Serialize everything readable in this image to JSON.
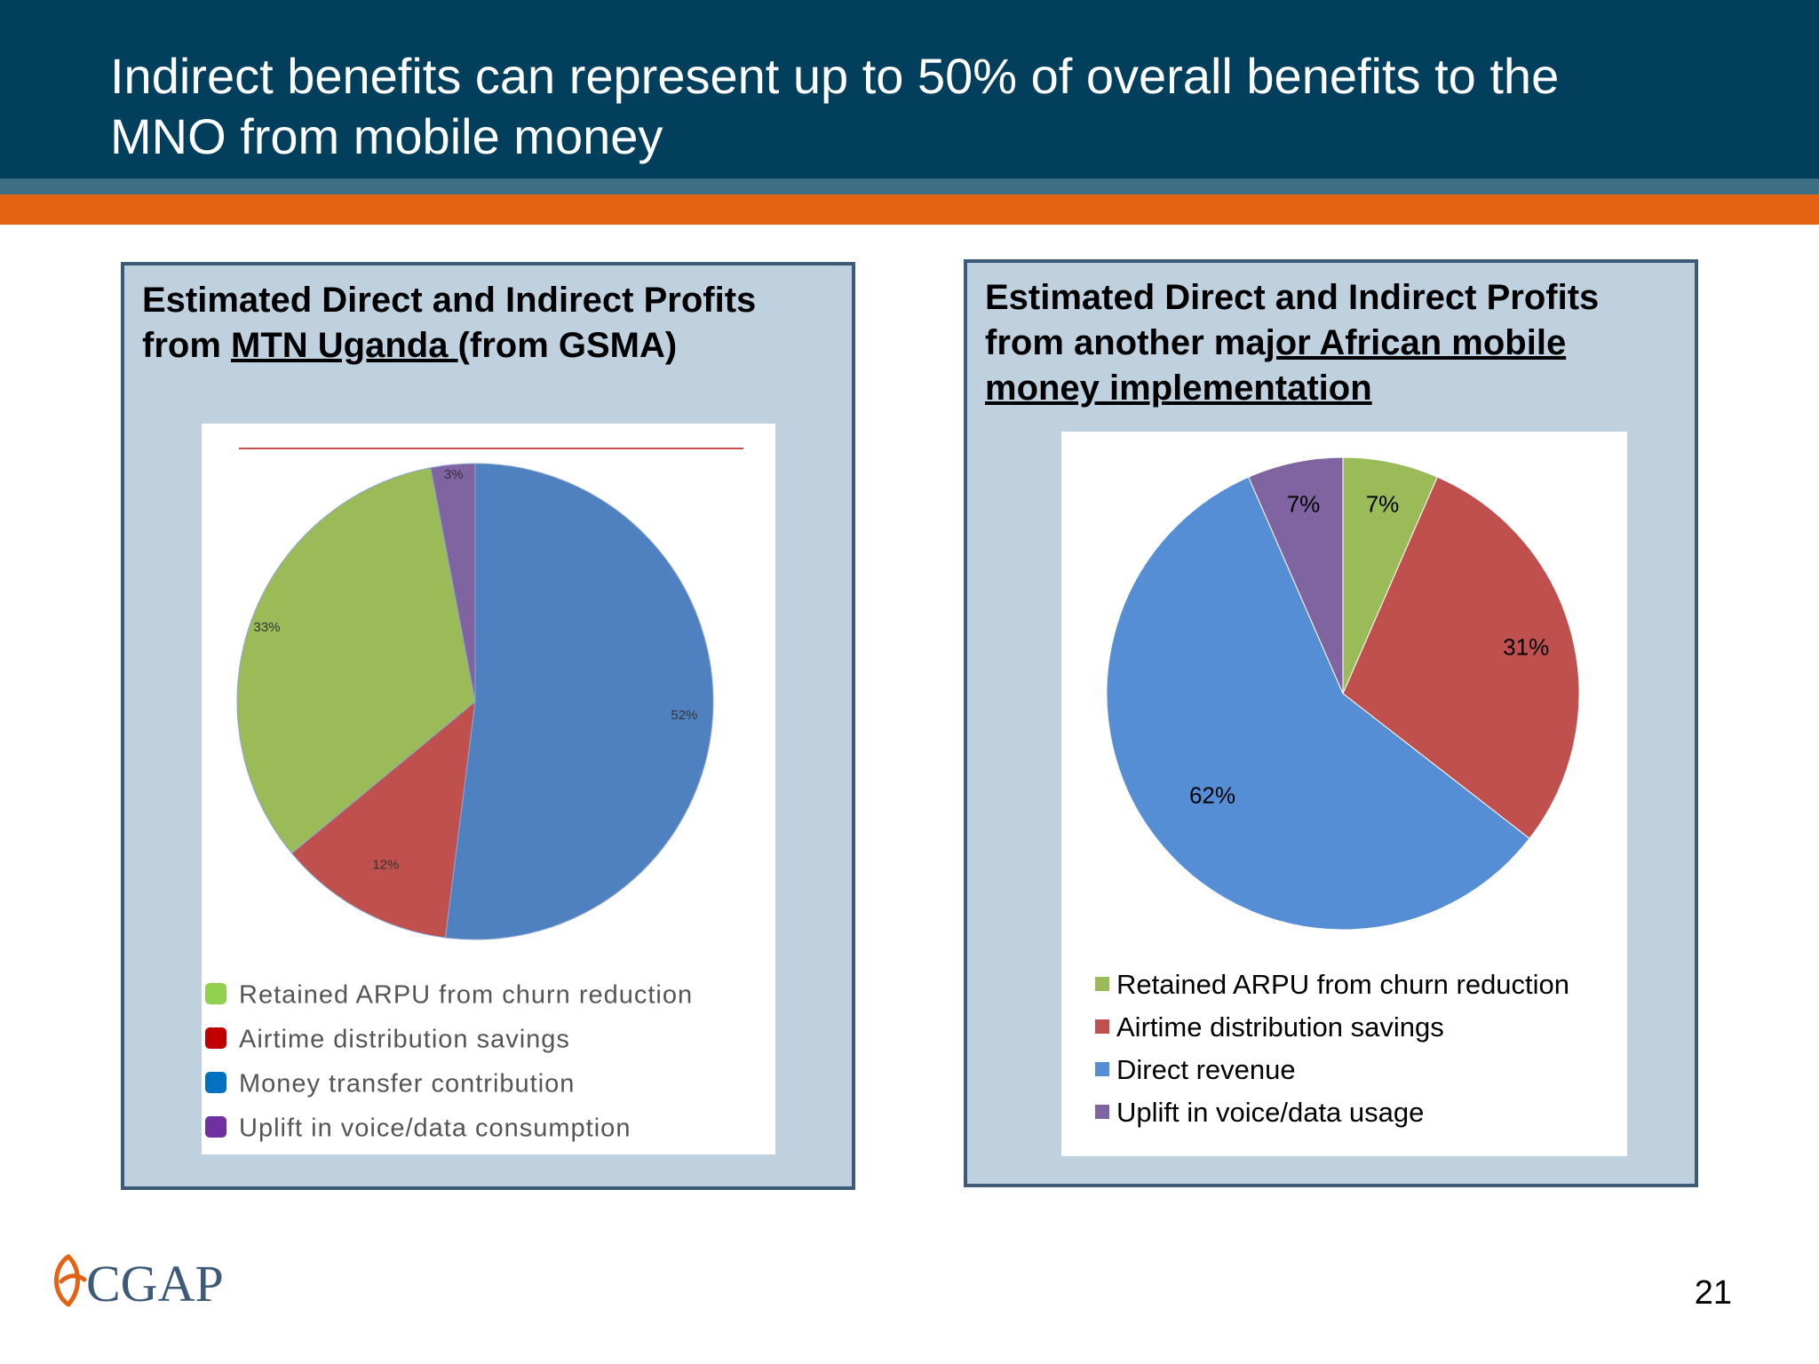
{
  "slide": {
    "title_line1": "Indirect benefits can represent up to 50% of overall benefits to the",
    "title_line2": "MNO from mobile money",
    "page_number": "21",
    "logo_text": "CGAP"
  },
  "left_panel": {
    "title_line1": "Estimated Direct and Indirect Profits",
    "title_prefix": "from ",
    "title_link": "MTN Uganda ",
    "title_suffix": "(from GSMA)"
  },
  "right_panel": {
    "title_line1": "Estimated Direct and Indirect Profits",
    "title_prefix": "from another ma",
    "title_link": "jor African mobile",
    "title_line3": "money implementation"
  },
  "chart_data": [
    {
      "type": "pie",
      "title": "",
      "slices": [
        {
          "label": "Money transfer contribution",
          "value": 52,
          "display": "52%",
          "color": "#4f81c1"
        },
        {
          "label": "Airtime distribution  savings",
          "value": 12,
          "display": "12%",
          "color": "#c0504d"
        },
        {
          "label": "Retained ARPU from churn reduction",
          "value": 33,
          "display": "33%",
          "color": "#9bbb59"
        },
        {
          "label": "Uplift in voice/data consumption",
          "value": 3,
          "display": "3%",
          "color": "#8064a2"
        }
      ],
      "legend": [
        {
          "label": "Retained ARPU from churn reduction",
          "color": "#92d050"
        },
        {
          "label": "Airtime distribution  savings",
          "color": "#c00000"
        },
        {
          "label": "Money transfer contribution",
          "color": "#0070c0"
        },
        {
          "label": "Uplift in voice/data consumption",
          "color": "#7030a0"
        }
      ],
      "legend_position": "bottom"
    },
    {
      "type": "pie",
      "title": "",
      "slices": [
        {
          "label": "Retained ARPU from churn reduction",
          "value": 7,
          "display": "7%",
          "color": "#9bbb59"
        },
        {
          "label": "Airtime distribution savings",
          "value": 31,
          "display": "31%",
          "color": "#c0504d"
        },
        {
          "label": "Direct revenue",
          "value": 62,
          "display": "62%",
          "color": "#558ed5"
        },
        {
          "label": "Uplift in voice/data usage",
          "value": 7,
          "display": "7%",
          "color": "#8064a2"
        }
      ],
      "legend": [
        {
          "label": "Retained ARPU from churn reduction",
          "color": "#9bbb59"
        },
        {
          "label": "Airtime distribution savings",
          "color": "#c0504d"
        },
        {
          "label": "Direct revenue",
          "color": "#558ed5"
        },
        {
          "label": "Uplift in voice/data usage",
          "color": "#8064a2"
        }
      ],
      "legend_position": "bottom"
    }
  ]
}
